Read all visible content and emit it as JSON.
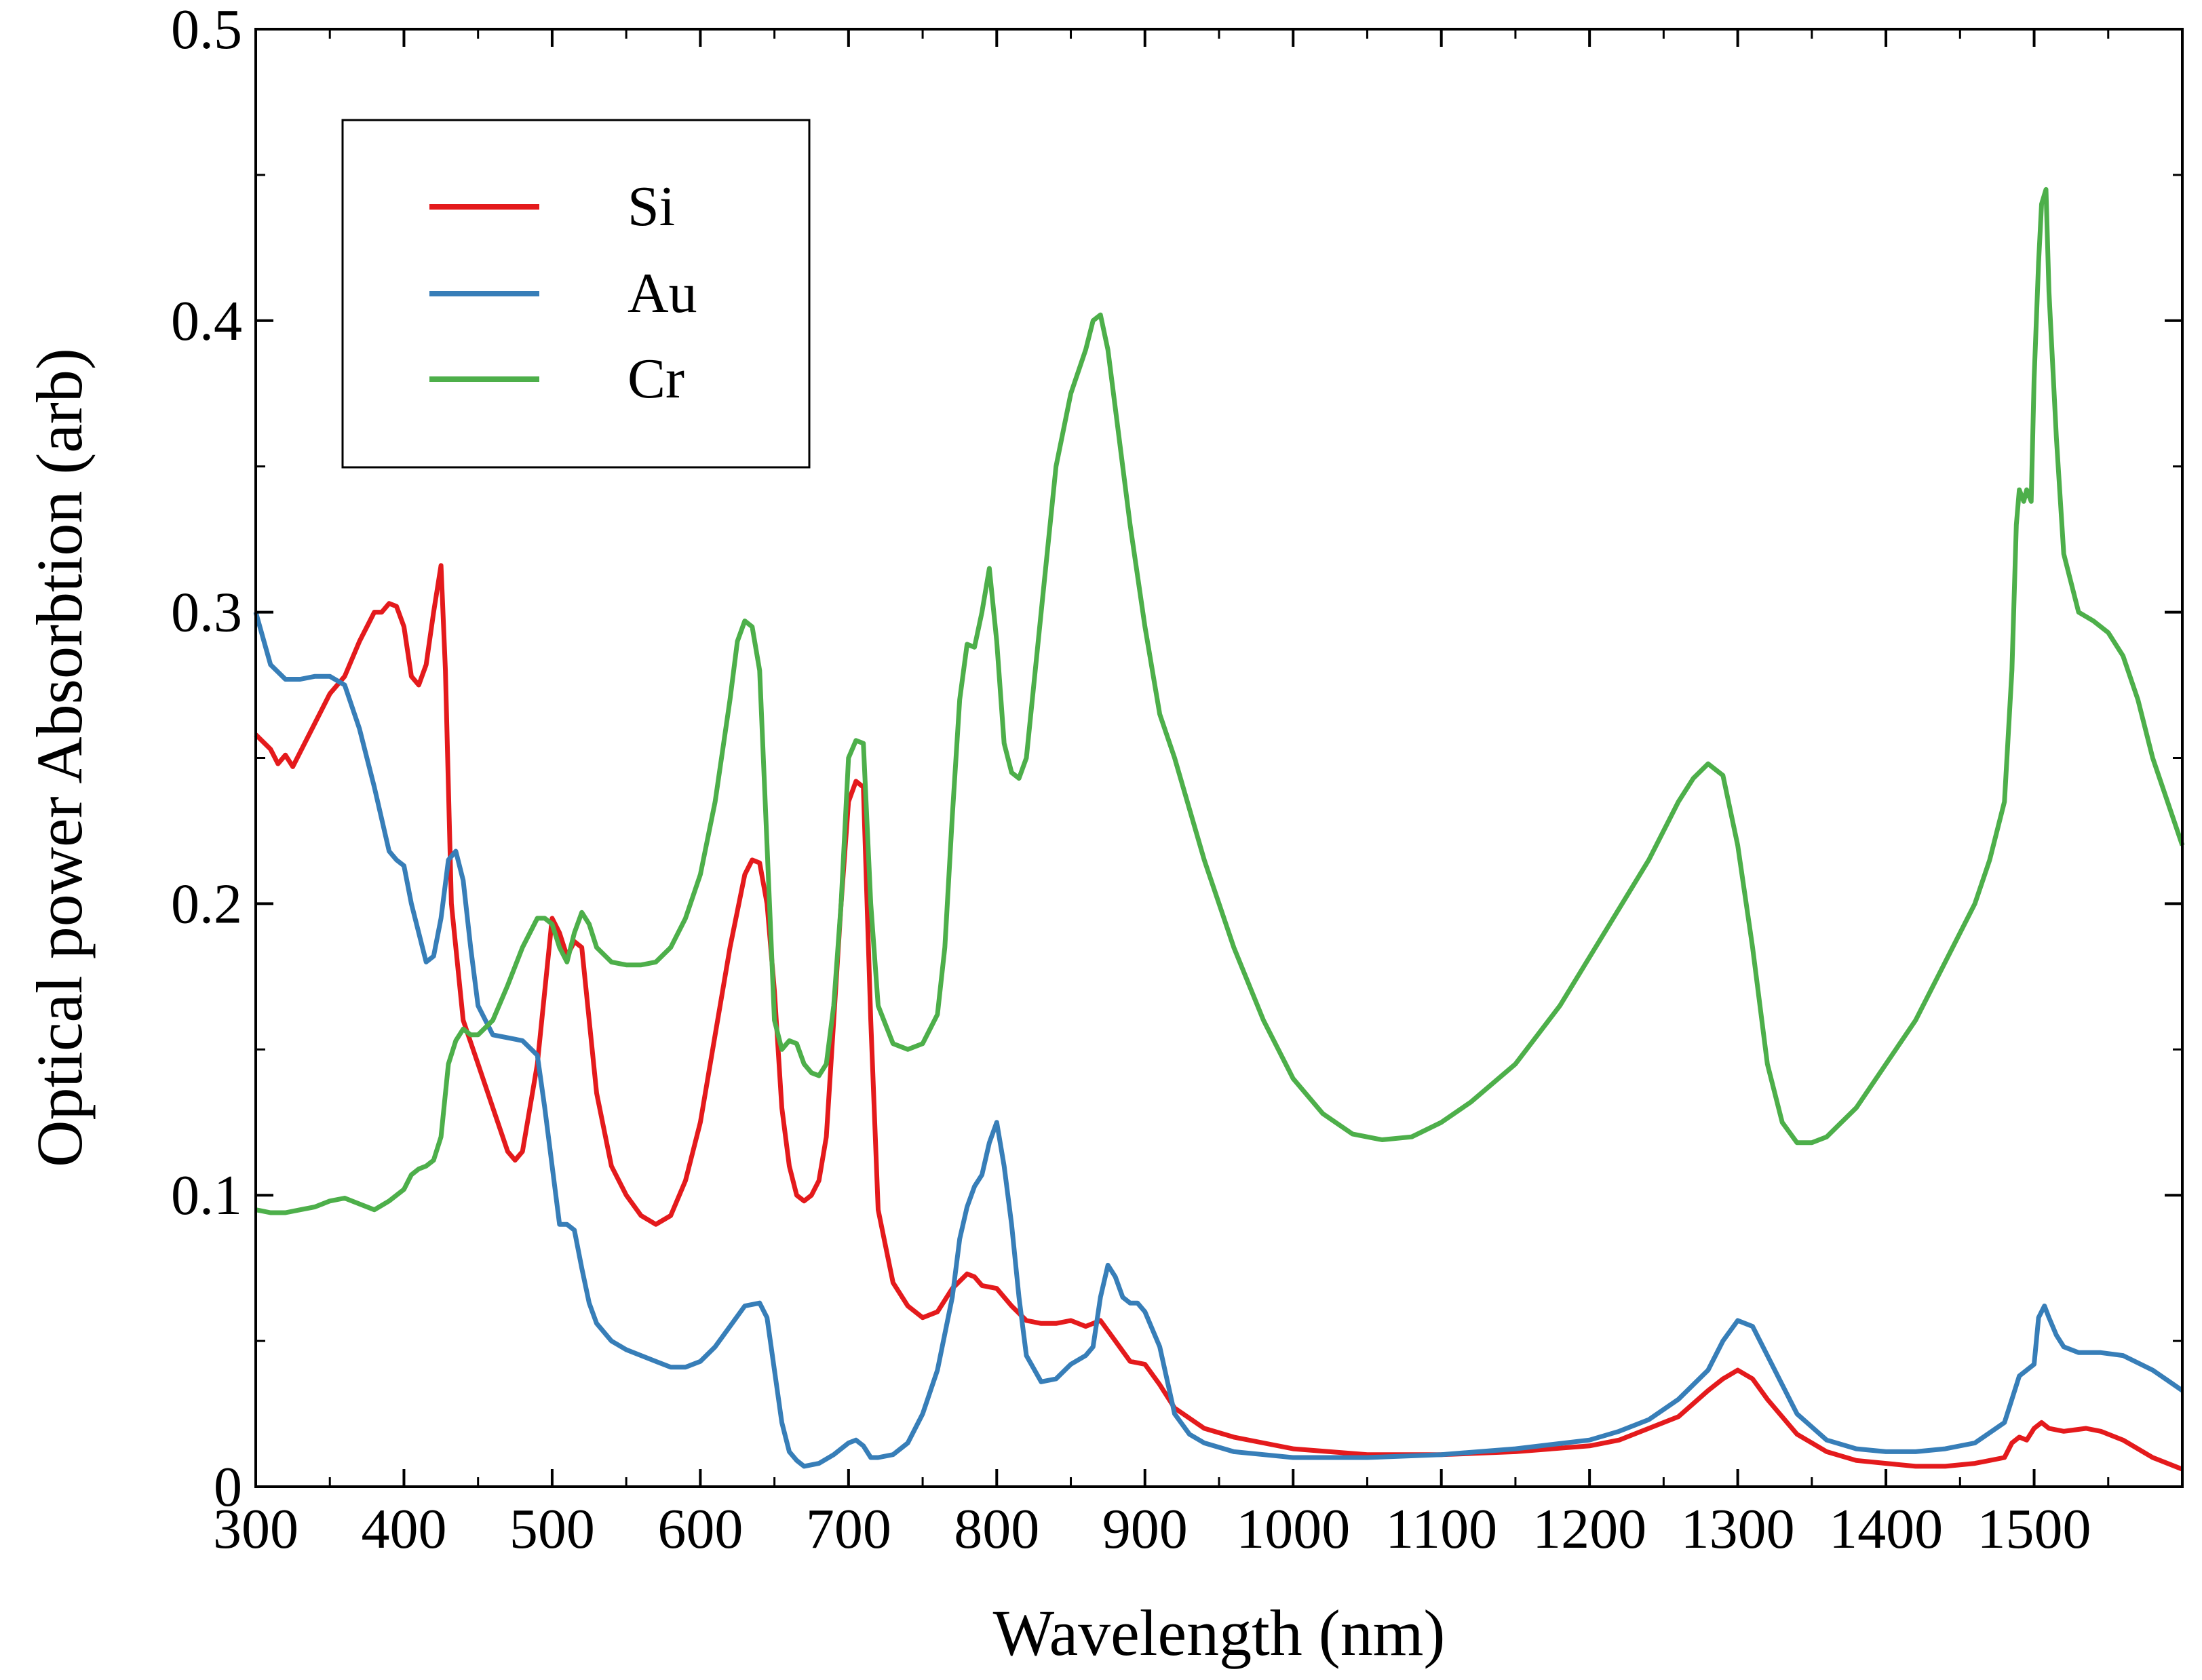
{
  "chart_data": {
    "type": "line",
    "title": "",
    "xlabel": "Wavelength (nm)",
    "ylabel": "Optical power Absorbtion (arb)",
    "xlim": [
      300,
      1600
    ],
    "ylim": [
      0,
      0.5
    ],
    "xticks": [
      300,
      400,
      500,
      600,
      700,
      800,
      900,
      1000,
      1100,
      1200,
      1300,
      1400,
      1500
    ],
    "xtick_labels": [
      "300",
      "400",
      "500",
      "600",
      "700",
      "800",
      "900",
      "1000",
      "1100",
      "1200",
      "1300",
      "1400",
      "1500"
    ],
    "yticks": [
      0,
      0.1,
      0.2,
      0.3,
      0.4,
      0.5
    ],
    "ytick_labels": [
      "0",
      "0.1",
      "0.2",
      "0.3",
      "0.4",
      "0.5"
    ],
    "grid": false,
    "legend_position": "top-left",
    "series": [
      {
        "name": "Si",
        "color": "#e41a1c",
        "x": [
          300,
          310,
          315,
          320,
          325,
          330,
          340,
          350,
          360,
          370,
          380,
          385,
          390,
          395,
          400,
          405,
          410,
          415,
          420,
          425,
          428,
          432,
          440,
          450,
          460,
          470,
          475,
          480,
          490,
          500,
          505,
          510,
          515,
          520,
          530,
          540,
          550,
          560,
          570,
          580,
          590,
          600,
          610,
          620,
          630,
          635,
          640,
          645,
          650,
          655,
          660,
          665,
          670,
          675,
          680,
          685,
          690,
          695,
          700,
          705,
          710,
          715,
          720,
          730,
          740,
          750,
          760,
          770,
          780,
          785,
          790,
          800,
          810,
          820,
          830,
          840,
          850,
          860,
          870,
          880,
          890,
          900,
          910,
          920,
          940,
          960,
          980,
          1000,
          1050,
          1100,
          1150,
          1200,
          1220,
          1240,
          1260,
          1280,
          1290,
          1300,
          1310,
          1320,
          1340,
          1360,
          1380,
          1400,
          1420,
          1440,
          1460,
          1480,
          1485,
          1490,
          1495,
          1500,
          1505,
          1510,
          1520,
          1535,
          1545,
          1560,
          1580,
          1600
        ],
        "y": [
          0.258,
          0.253,
          0.248,
          0.251,
          0.247,
          0.252,
          0.262,
          0.272,
          0.278,
          0.29,
          0.3,
          0.3,
          0.303,
          0.302,
          0.295,
          0.278,
          0.275,
          0.282,
          0.3,
          0.316,
          0.28,
          0.2,
          0.16,
          0.145,
          0.13,
          0.115,
          0.112,
          0.115,
          0.145,
          0.195,
          0.19,
          0.182,
          0.187,
          0.185,
          0.135,
          0.11,
          0.1,
          0.093,
          0.09,
          0.093,
          0.105,
          0.125,
          0.155,
          0.185,
          0.21,
          0.215,
          0.214,
          0.2,
          0.17,
          0.13,
          0.11,
          0.1,
          0.098,
          0.1,
          0.105,
          0.12,
          0.16,
          0.2,
          0.235,
          0.242,
          0.24,
          0.16,
          0.095,
          0.07,
          0.062,
          0.058,
          0.06,
          0.068,
          0.073,
          0.072,
          0.069,
          0.068,
          0.062,
          0.057,
          0.056,
          0.056,
          0.057,
          0.055,
          0.057,
          0.05,
          0.043,
          0.042,
          0.035,
          0.027,
          0.02,
          0.017,
          0.015,
          0.013,
          0.011,
          0.011,
          0.012,
          0.014,
          0.016,
          0.02,
          0.024,
          0.033,
          0.037,
          0.04,
          0.037,
          0.03,
          0.018,
          0.012,
          0.009,
          0.008,
          0.007,
          0.007,
          0.008,
          0.01,
          0.015,
          0.017,
          0.016,
          0.02,
          0.022,
          0.02,
          0.019,
          0.02,
          0.019,
          0.016,
          0.01,
          0.006
        ]
      },
      {
        "name": "Au",
        "color": "#377eb8",
        "x": [
          300,
          310,
          320,
          330,
          340,
          350,
          360,
          370,
          380,
          390,
          395,
          400,
          405,
          410,
          415,
          420,
          425,
          430,
          435,
          440,
          445,
          450,
          460,
          470,
          480,
          490,
          495,
          500,
          505,
          510,
          515,
          520,
          525,
          530,
          540,
          550,
          560,
          570,
          580,
          590,
          600,
          610,
          620,
          630,
          640,
          645,
          650,
          655,
          660,
          665,
          670,
          680,
          690,
          700,
          705,
          710,
          715,
          720,
          730,
          740,
          750,
          760,
          770,
          775,
          780,
          785,
          790,
          795,
          800,
          805,
          810,
          815,
          820,
          830,
          840,
          850,
          860,
          865,
          870,
          875,
          880,
          885,
          890,
          895,
          900,
          910,
          920,
          930,
          940,
          960,
          980,
          1000,
          1050,
          1100,
          1150,
          1200,
          1220,
          1240,
          1260,
          1280,
          1290,
          1300,
          1310,
          1320,
          1340,
          1360,
          1380,
          1400,
          1420,
          1440,
          1460,
          1480,
          1485,
          1490,
          1495,
          1500,
          1503,
          1507,
          1510,
          1515,
          1520,
          1530,
          1545,
          1560,
          1580,
          1600
        ],
        "y": [
          0.3,
          0.282,
          0.277,
          0.277,
          0.278,
          0.278,
          0.275,
          0.26,
          0.24,
          0.218,
          0.215,
          0.213,
          0.2,
          0.19,
          0.18,
          0.182,
          0.195,
          0.215,
          0.218,
          0.208,
          0.185,
          0.165,
          0.155,
          0.154,
          0.153,
          0.148,
          0.13,
          0.11,
          0.09,
          0.09,
          0.088,
          0.075,
          0.063,
          0.056,
          0.05,
          0.047,
          0.045,
          0.043,
          0.041,
          0.041,
          0.043,
          0.048,
          0.055,
          0.062,
          0.063,
          0.058,
          0.04,
          0.022,
          0.012,
          0.009,
          0.007,
          0.008,
          0.011,
          0.015,
          0.016,
          0.014,
          0.01,
          0.01,
          0.011,
          0.015,
          0.025,
          0.04,
          0.065,
          0.085,
          0.096,
          0.103,
          0.107,
          0.118,
          0.125,
          0.11,
          0.09,
          0.065,
          0.045,
          0.036,
          0.037,
          0.042,
          0.045,
          0.048,
          0.065,
          0.076,
          0.072,
          0.065,
          0.063,
          0.063,
          0.06,
          0.048,
          0.025,
          0.018,
          0.015,
          0.012,
          0.011,
          0.01,
          0.01,
          0.011,
          0.013,
          0.016,
          0.019,
          0.023,
          0.03,
          0.04,
          0.05,
          0.057,
          0.055,
          0.045,
          0.025,
          0.016,
          0.013,
          0.012,
          0.012,
          0.013,
          0.015,
          0.022,
          0.03,
          0.038,
          0.04,
          0.042,
          0.058,
          0.062,
          0.058,
          0.052,
          0.048,
          0.046,
          0.046,
          0.045,
          0.04,
          0.033
        ]
      },
      {
        "name": "Cr",
        "color": "#4daf4a",
        "x": [
          300,
          310,
          320,
          330,
          340,
          350,
          360,
          370,
          380,
          390,
          400,
          405,
          410,
          415,
          420,
          425,
          430,
          435,
          440,
          445,
          450,
          460,
          470,
          480,
          490,
          495,
          500,
          505,
          510,
          515,
          520,
          525,
          530,
          540,
          550,
          560,
          570,
          580,
          590,
          600,
          610,
          620,
          625,
          630,
          635,
          640,
          645,
          650,
          655,
          660,
          665,
          670,
          675,
          680,
          685,
          690,
          695,
          700,
          705,
          710,
          715,
          720,
          730,
          740,
          750,
          760,
          765,
          770,
          775,
          780,
          785,
          790,
          795,
          800,
          805,
          810,
          815,
          820,
          830,
          840,
          850,
          860,
          865,
          870,
          875,
          880,
          890,
          900,
          910,
          920,
          940,
          960,
          980,
          1000,
          1020,
          1040,
          1060,
          1080,
          1100,
          1120,
          1150,
          1180,
          1210,
          1240,
          1260,
          1270,
          1280,
          1290,
          1300,
          1310,
          1320,
          1330,
          1340,
          1350,
          1360,
          1370,
          1380,
          1400,
          1420,
          1440,
          1460,
          1470,
          1480,
          1485,
          1488,
          1490,
          1493,
          1495,
          1498,
          1500,
          1503,
          1505,
          1508,
          1510,
          1515,
          1520,
          1530,
          1540,
          1550,
          1560,
          1570,
          1580,
          1600
        ],
        "y": [
          0.095,
          0.094,
          0.094,
          0.095,
          0.096,
          0.098,
          0.099,
          0.097,
          0.095,
          0.098,
          0.102,
          0.107,
          0.109,
          0.11,
          0.112,
          0.12,
          0.145,
          0.153,
          0.157,
          0.155,
          0.155,
          0.16,
          0.172,
          0.185,
          0.195,
          0.195,
          0.193,
          0.185,
          0.18,
          0.19,
          0.197,
          0.193,
          0.185,
          0.18,
          0.179,
          0.179,
          0.18,
          0.185,
          0.195,
          0.21,
          0.235,
          0.27,
          0.29,
          0.297,
          0.295,
          0.28,
          0.22,
          0.16,
          0.15,
          0.153,
          0.152,
          0.145,
          0.142,
          0.141,
          0.145,
          0.165,
          0.2,
          0.25,
          0.256,
          0.255,
          0.2,
          0.165,
          0.152,
          0.15,
          0.152,
          0.162,
          0.185,
          0.23,
          0.27,
          0.289,
          0.288,
          0.3,
          0.315,
          0.29,
          0.255,
          0.245,
          0.243,
          0.25,
          0.3,
          0.35,
          0.375,
          0.39,
          0.4,
          0.402,
          0.39,
          0.37,
          0.33,
          0.295,
          0.265,
          0.25,
          0.215,
          0.185,
          0.16,
          0.14,
          0.128,
          0.121,
          0.119,
          0.12,
          0.125,
          0.132,
          0.145,
          0.165,
          0.19,
          0.215,
          0.235,
          0.243,
          0.248,
          0.244,
          0.22,
          0.185,
          0.145,
          0.125,
          0.118,
          0.118,
          0.12,
          0.125,
          0.13,
          0.145,
          0.16,
          0.18,
          0.2,
          0.215,
          0.235,
          0.28,
          0.33,
          0.342,
          0.338,
          0.342,
          0.338,
          0.38,
          0.42,
          0.44,
          0.445,
          0.41,
          0.36,
          0.32,
          0.3,
          0.297,
          0.293,
          0.285,
          0.27,
          0.25,
          0.22
        ]
      }
    ]
  }
}
